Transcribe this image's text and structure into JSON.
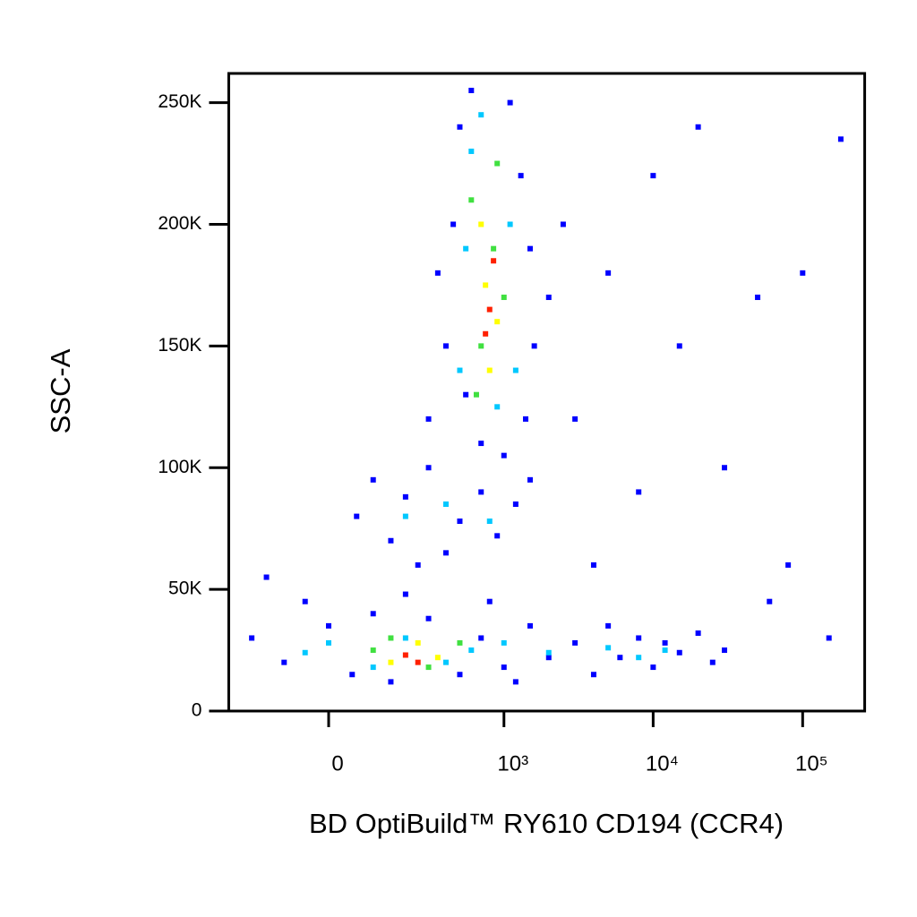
{
  "chart_data": {
    "type": "scatter",
    "x_label": "BD OptiBuild™ RY610 CD194 (CCR4)",
    "y_label": "SSC-A",
    "xscale": "biexponential",
    "xlim": [
      -300,
      260000
    ],
    "xticks": [
      0,
      {
        "value": 1000,
        "label": "10³"
      },
      {
        "value": 10000,
        "label": "10⁴"
      },
      {
        "value": 100000,
        "label": "10⁵"
      }
    ],
    "ylim": [
      0,
      262000
    ],
    "yticks": [
      0,
      {
        "value": 50000,
        "label": "50K"
      },
      {
        "value": 100000,
        "label": "100K"
      },
      {
        "value": 150000,
        "label": "150K"
      },
      {
        "value": 200000,
        "label": "200K"
      },
      {
        "value": 250000,
        "label": "250K"
      }
    ],
    "series": [
      {
        "color": "#0000ff",
        "x": [
          -200,
          -100,
          0,
          50,
          100,
          150,
          300,
          500,
          700,
          1000,
          1500,
          2000,
          3000,
          4000,
          5000,
          6000,
          8000,
          10000,
          12000,
          15000,
          20000,
          25000,
          30000,
          -50,
          200,
          800,
          1200,
          60,
          100,
          150,
          200,
          300,
          400,
          500,
          700,
          900,
          1200,
          1500,
          250,
          300,
          400,
          450,
          500,
          550,
          600,
          700,
          1100,
          1300,
          1500,
          1600,
          1400,
          1000,
          2000,
          2500,
          350,
          3000,
          5000,
          8000,
          10000,
          15000,
          20000,
          30000,
          50000,
          80000,
          100000,
          150000,
          180000,
          4000,
          60000,
          -150
        ],
        "y": [
          30000,
          20000,
          35000,
          15000,
          40000,
          12000,
          38000,
          15000,
          30000,
          18000,
          35000,
          22000,
          28000,
          15000,
          35000,
          22000,
          30000,
          18000,
          28000,
          24000,
          32000,
          20000,
          25000,
          45000,
          48000,
          45000,
          12000,
          80000,
          95000,
          70000,
          88000,
          100000,
          65000,
          78000,
          90000,
          72000,
          85000,
          95000,
          60000,
          120000,
          150000,
          200000,
          240000,
          130000,
          255000,
          110000,
          250000,
          220000,
          190000,
          150000,
          120000,
          105000,
          170000,
          200000,
          180000,
          120000,
          180000,
          90000,
          220000,
          150000,
          240000,
          100000,
          170000,
          60000,
          180000,
          30000,
          235000,
          60000,
          45000,
          55000
        ]
      },
      {
        "color": "#00c8ff",
        "x": [
          0,
          100,
          200,
          400,
          600,
          1000,
          2000,
          5000,
          8000,
          12000,
          -50,
          200,
          400,
          800,
          500,
          600,
          700,
          1100,
          1200,
          550,
          900
        ],
        "y": [
          28000,
          18000,
          30000,
          20000,
          25000,
          28000,
          24000,
          26000,
          22000,
          25000,
          24000,
          80000,
          85000,
          78000,
          140000,
          230000,
          245000,
          200000,
          140000,
          190000,
          125000
        ]
      },
      {
        "color": "#40e040",
        "x": [
          100,
          150,
          300,
          500,
          600,
          700,
          900,
          1000,
          650,
          850
        ],
        "y": [
          25000,
          30000,
          18000,
          28000,
          210000,
          150000,
          225000,
          170000,
          130000,
          190000
        ]
      },
      {
        "color": "#ffff00",
        "x": [
          150,
          250,
          350,
          700,
          900,
          750,
          800
        ],
        "y": [
          20000,
          28000,
          22000,
          200000,
          160000,
          175000,
          140000
        ]
      },
      {
        "color": "#ff2000",
        "x": [
          200,
          250,
          800,
          750,
          850
        ],
        "y": [
          23000,
          20000,
          165000,
          155000,
          185000
        ]
      }
    ]
  }
}
